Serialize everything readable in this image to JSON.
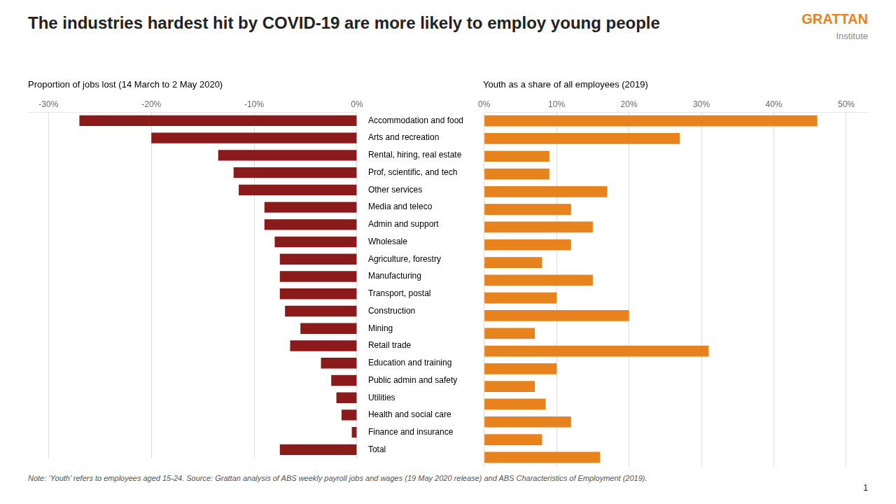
{
  "title": "The industries hardest hit by COVID-19 are more likely to employ young people",
  "annotations": [
    {
      "text": "GRATTAN",
      "color": "#E8821C"
    },
    {
      "text": "Institute"
    },
    {
      "text": "Note: ‘Youth’ refers to employees aged 15-24. Source: Grattan analysis of ABS weekly payroll jobs and wages (19 May 2020 release) and ABS Characteristics of Employment (2019)."
    },
    {
      "text": "1"
    }
  ],
  "chart_data": [
    {
      "type": "bar",
      "orientation": "horizontal",
      "subtitle": "Proportion of jobs lost (14 March to 2 May 2020)",
      "categories": [
        "Accommodation and food",
        "Arts and recreation",
        "Rental, hiring, real estate",
        "Prof, scientific, and tech",
        "Other services",
        "Media and teleco",
        "Admin and support",
        "Wholesale",
        "Agriculture, forestry",
        "Manufacturing",
        "Transport, postal",
        "Construction",
        "Mining",
        "Retail trade",
        "Education and training",
        "Public admin and safety",
        "Utilities",
        "Health and social care",
        "Finance and insurance",
        "Total"
      ],
      "values": [
        -27.0,
        -20.0,
        -13.5,
        -12.0,
        -11.5,
        -9.0,
        -9.0,
        -8.0,
        -7.5,
        -7.5,
        -7.5,
        -7.0,
        -5.5,
        -6.5,
        -3.5,
        -2.5,
        -2.0,
        -1.5,
        -0.5,
        -7.5
      ],
      "color": "#8B1A1A",
      "xlim": [
        -32,
        0
      ],
      "xticks": [
        {
          "value": -30,
          "label": "-30%"
        },
        {
          "value": -20,
          "label": "-20%"
        },
        {
          "value": -10,
          "label": "-10%"
        },
        {
          "value": 0,
          "label": "0%"
        }
      ],
      "grid": true,
      "tick_labels": true
    },
    {
      "type": "bar",
      "orientation": "horizontal",
      "subtitle": "Youth as a share of all employees (2019)",
      "categories": [
        "Accommodation and food",
        "Arts and recreation",
        "Rental, hiring, real estate",
        "Prof, scientific, and tech",
        "Other services",
        "Media and teleco",
        "Admin and support",
        "Wholesale",
        "Agriculture, forestry",
        "Manufacturing",
        "Transport, postal",
        "Construction",
        "Mining",
        "Retail trade",
        "Education and training",
        "Public admin and safety",
        "Utilities",
        "Health and social care",
        "Finance and insurance",
        "Total"
      ],
      "values": [
        46.0,
        27.0,
        9.0,
        9.0,
        17.0,
        12.0,
        15.0,
        12.0,
        8.0,
        15.0,
        10.0,
        20.0,
        7.0,
        31.0,
        10.0,
        7.0,
        8.5,
        12.0,
        8.0,
        16.0
      ],
      "color": "#E8821C",
      "xlim": [
        0,
        53
      ],
      "xticks": [
        {
          "value": 0,
          "label": "0%"
        },
        {
          "value": 10,
          "label": "10%"
        },
        {
          "value": 20,
          "label": "20%"
        },
        {
          "value": 30,
          "label": "30%"
        },
        {
          "value": 40,
          "label": "40%"
        },
        {
          "value": 50,
          "label": "50%"
        }
      ],
      "grid": true,
      "tick_labels": "x"
    }
  ]
}
